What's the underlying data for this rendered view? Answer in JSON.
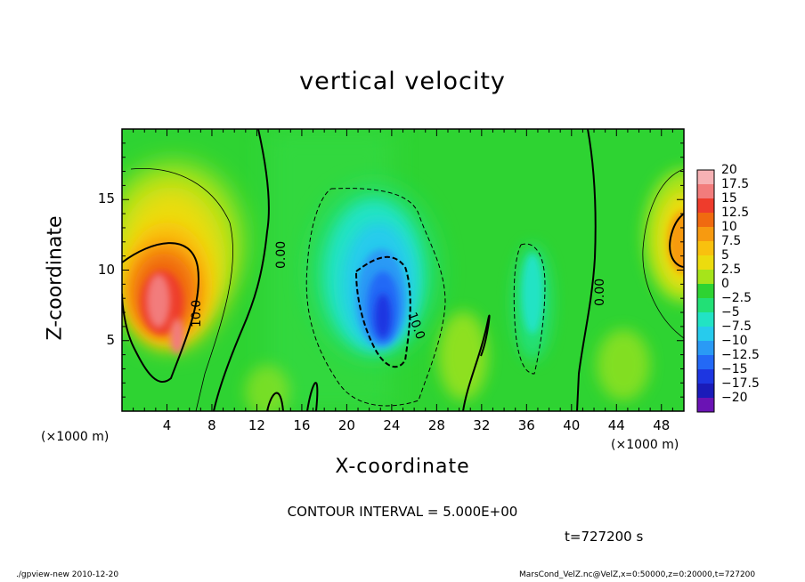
{
  "chart_data": {
    "type": "heatmap",
    "title": "vertical velocity",
    "xlabel": "X-coordinate",
    "ylabel": "Z-coordinate",
    "x_unit_label": "(×1000 m)",
    "xlim": [
      0,
      50
    ],
    "ylim": [
      0,
      20
    ],
    "x_ticks": [
      "4",
      "8",
      "12",
      "16",
      "20",
      "24",
      "28",
      "32",
      "36",
      "40",
      "44",
      "48"
    ],
    "y_ticks": [
      "5",
      "10",
      "15"
    ],
    "colorbar_labels": [
      "20",
      "17.5",
      "15",
      "12.5",
      "10",
      "7.5",
      "5",
      "2.5",
      "0",
      "−2.5",
      "−5",
      "−7.5",
      "−10",
      "−12.5",
      "−15",
      "−17.5",
      "−20"
    ],
    "colorbar_colors": [
      "#f6b1b4",
      "#f27c7c",
      "#ee3c2c",
      "#f06a10",
      "#f79a10",
      "#f9c10e",
      "#ecdc0e",
      "#a6e41a",
      "#2ed332",
      "#22e076",
      "#22e3c4",
      "#27cbed",
      "#2a9af5",
      "#2369f6",
      "#1d36e1",
      "#1a1bb9",
      "#6a13b4"
    ],
    "contour_labels": [
      "10.0",
      "0.00",
      "10.0",
      "0.00"
    ],
    "contour_interval_text": "CONTOUR INTERVAL = 5.000E+00",
    "time_text": "t=727200 s",
    "features": [
      {
        "x": 4.5,
        "z": 7.5,
        "value": 20
      },
      {
        "x": 23.5,
        "z": 7.0,
        "value": -12.5
      },
      {
        "x": 49,
        "z": 12.5,
        "value": 10
      },
      {
        "x": 35.5,
        "z": 7.5,
        "value": -5
      }
    ]
  },
  "footer": {
    "left": "./gpview-new  2010-12-20",
    "right": "MarsCond_VelZ.nc@VelZ,x=0:50000,z=0:20000,t=727200"
  }
}
